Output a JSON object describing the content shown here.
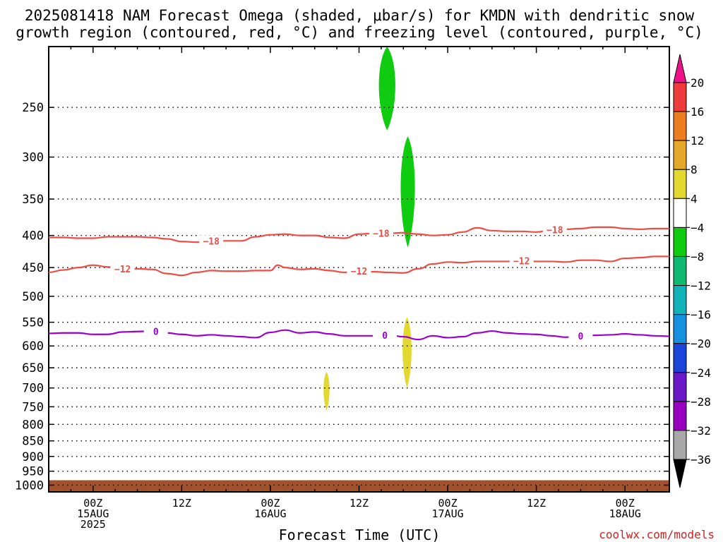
{
  "chart_data": {
    "type": "area",
    "title_lines": [
      "2025081418 NAM Forecast Omega (shaded, μbar/s) for KMDN with dendritic snow",
      "growth region (contoured, red, °C) and freezing level (contoured, purple, °C)"
    ],
    "xlabel": "Forecast Time (UTC)",
    "ylabel": "",
    "credit": "coolwx.com/models",
    "y_axis": {
      "scale": "log-pressure",
      "ylim_hPa": [
        1025,
        200
      ],
      "ticks": [
        250,
        300,
        350,
        400,
        450,
        500,
        550,
        600,
        650,
        700,
        750,
        800,
        850,
        900,
        950,
        1000
      ]
    },
    "x_axis": {
      "unit": "hours since 2025-08-14 18Z",
      "xlim": [
        0,
        84
      ],
      "ticks": [
        {
          "x": 6,
          "lines": [
            "00Z",
            "15AUG",
            "2025"
          ]
        },
        {
          "x": 18,
          "lines": [
            "12Z"
          ]
        },
        {
          "x": 30,
          "lines": [
            "00Z",
            "16AUG"
          ]
        },
        {
          "x": 42,
          "lines": [
            "12Z"
          ]
        },
        {
          "x": 54,
          "lines": [
            "00Z",
            "17AUG"
          ]
        },
        {
          "x": 66,
          "lines": [
            "12Z"
          ]
        },
        {
          "x": 78,
          "lines": [
            "00Z",
            "18AUG"
          ]
        }
      ]
    },
    "grid": true,
    "ground": {
      "color": "#a0522d",
      "pressure_hPa": 982
    },
    "series": [
      {
        "name": "-18",
        "color": "#ee4c44",
        "label": "−18",
        "label_at": [
          22,
          45,
          68.5
        ],
        "x": [
          0,
          2,
          4,
          6,
          8,
          10,
          12,
          14,
          16,
          18,
          20,
          22,
          24,
          26,
          28,
          30,
          32,
          34,
          36,
          38,
          40,
          42,
          44,
          46,
          48,
          50,
          52,
          54,
          56,
          58,
          60,
          62,
          64,
          66,
          68,
          70,
          72,
          74,
          76,
          78,
          80,
          82,
          84
        ],
        "y": [
          403,
          403,
          404,
          404,
          402,
          402,
          402,
          403,
          405,
          409,
          410,
          408,
          408,
          408,
          402,
          399,
          398,
          400,
          400,
          403,
          404,
          398,
          397,
          397,
          396,
          398,
          400,
          399,
          395,
          389,
          393,
          394,
          394,
          395,
          392,
          391,
          390,
          388,
          388,
          390,
          391,
          390,
          390
        ]
      },
      {
        "name": "-12",
        "color": "#ee4c44",
        "label": "−12",
        "label_at": [
          10,
          42,
          64
        ],
        "x": [
          0,
          2,
          4,
          6,
          8,
          10,
          12,
          14,
          16,
          18,
          20,
          22,
          24,
          26,
          28,
          30,
          31,
          32,
          34,
          36,
          38,
          40,
          42,
          44,
          46,
          48,
          50,
          52,
          54,
          56,
          58,
          60,
          62,
          64,
          66,
          68,
          70,
          72,
          74,
          76,
          78,
          80,
          82,
          84
        ],
        "y": [
          458,
          454,
          450,
          446,
          449,
          452,
          452,
          453,
          460,
          463,
          458,
          455,
          456,
          456,
          455,
          455,
          446,
          450,
          453,
          452,
          455,
          458,
          456,
          457,
          458,
          459,
          452,
          444,
          441,
          442,
          440,
          440,
          440,
          439,
          440,
          440,
          441,
          438,
          438,
          440,
          435,
          434,
          432,
          432
        ]
      },
      {
        "name": "0",
        "color": "#9b00d0",
        "label": "0",
        "label_at": [
          14.5,
          45.5,
          72
        ],
        "x": [
          0,
          2,
          4,
          6,
          8,
          10,
          12,
          14,
          16,
          18,
          20,
          22,
          24,
          26,
          28,
          30,
          32,
          34,
          36,
          38,
          40,
          42,
          44,
          46,
          48,
          50,
          52,
          54,
          56,
          58,
          60,
          62,
          64,
          66,
          68,
          70,
          72,
          74,
          76,
          78,
          80,
          82,
          84
        ],
        "y": [
          573,
          572,
          572,
          575,
          575,
          570,
          569,
          568,
          572,
          575,
          578,
          576,
          578,
          580,
          582,
          571,
          566,
          572,
          570,
          574,
          578,
          578,
          578,
          576,
          580,
          586,
          578,
          582,
          580,
          572,
          568,
          572,
          574,
          575,
          578,
          581,
          578,
          577,
          576,
          574,
          576,
          578,
          579
        ]
      }
    ],
    "shaded_regions": [
      {
        "label": "-8",
        "color": "#10cc10",
        "x_center": 45.8,
        "half_width": 1.1,
        "p_top": 200,
        "p_bottom": 272
      },
      {
        "label": "-8",
        "color": "#10cc10",
        "x_center": 48.6,
        "half_width": 0.95,
        "p_top": 278,
        "p_bottom": 418
      },
      {
        "label": "4",
        "color": "#e3d830",
        "x_center": 48.5,
        "half_width": 0.6,
        "p_top": 540,
        "p_bottom": 700
      },
      {
        "label": "4",
        "color": "#e3d830",
        "x_center": 37.6,
        "half_width": 0.4,
        "p_top": 660,
        "p_bottom": 760
      }
    ],
    "colorbar": {
      "labels": [
        "20",
        "16",
        "12",
        "8",
        "4",
        "−4",
        "−8",
        "−12",
        "−16",
        "−20",
        "−24",
        "−28",
        "−32",
        "−36"
      ],
      "top_arrow": "#ee1288",
      "bottom_arrow": "#000000",
      "colors": [
        "#ee3c3c",
        "#ee7c20",
        "#e6a828",
        "#e3d830",
        "#ffffff",
        "#10cc10",
        "#10b870",
        "#10b4b8",
        "#1890e0",
        "#1c44d8",
        "#6a18c8",
        "#9800c0",
        "#a8a8a8"
      ]
    }
  }
}
